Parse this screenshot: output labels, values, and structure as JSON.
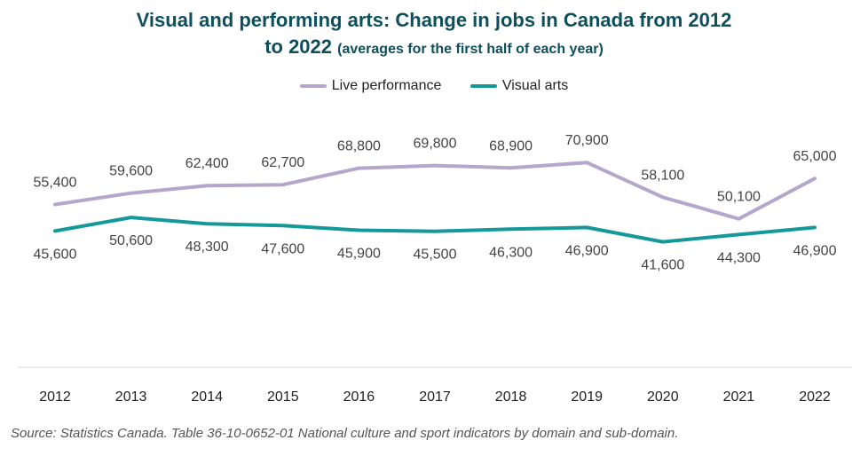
{
  "title": {
    "line1": "Visual and performing arts: Change in jobs in Canada from 2012",
    "line2": "to 2022",
    "line2_sub": "(averages for the first half of each year)"
  },
  "source": "Source: Statistics Canada. Table 36-10-0652-01  National culture and sport indicators by domain and sub-domain.",
  "chart_data": {
    "type": "line",
    "categories": [
      "2012",
      "2013",
      "2014",
      "2015",
      "2016",
      "2017",
      "2018",
      "2019",
      "2020",
      "2021",
      "2022"
    ],
    "series": [
      {
        "name": "Live performance",
        "color": "#b4a7cb",
        "values": [
          55400,
          59600,
          62400,
          62700,
          68800,
          69800,
          68900,
          70900,
          58100,
          50100,
          65000
        ],
        "labels": [
          "55,400",
          "59,600",
          "62,400",
          "62,700",
          "68,800",
          "69,800",
          "68,900",
          "70,900",
          "58,100",
          "50,100",
          "65,000"
        ]
      },
      {
        "name": "Visual arts",
        "color": "#13999a",
        "values": [
          45600,
          50600,
          48300,
          47600,
          45900,
          45500,
          46300,
          46900,
          41600,
          44300,
          46900
        ],
        "labels": [
          "45,600",
          "50,600",
          "48,300",
          "47,600",
          "45,900",
          "45,500",
          "46,300",
          "46,900",
          "41,600",
          "44,300",
          "46,900"
        ]
      }
    ],
    "legend_position": "top-center",
    "grid": false
  }
}
